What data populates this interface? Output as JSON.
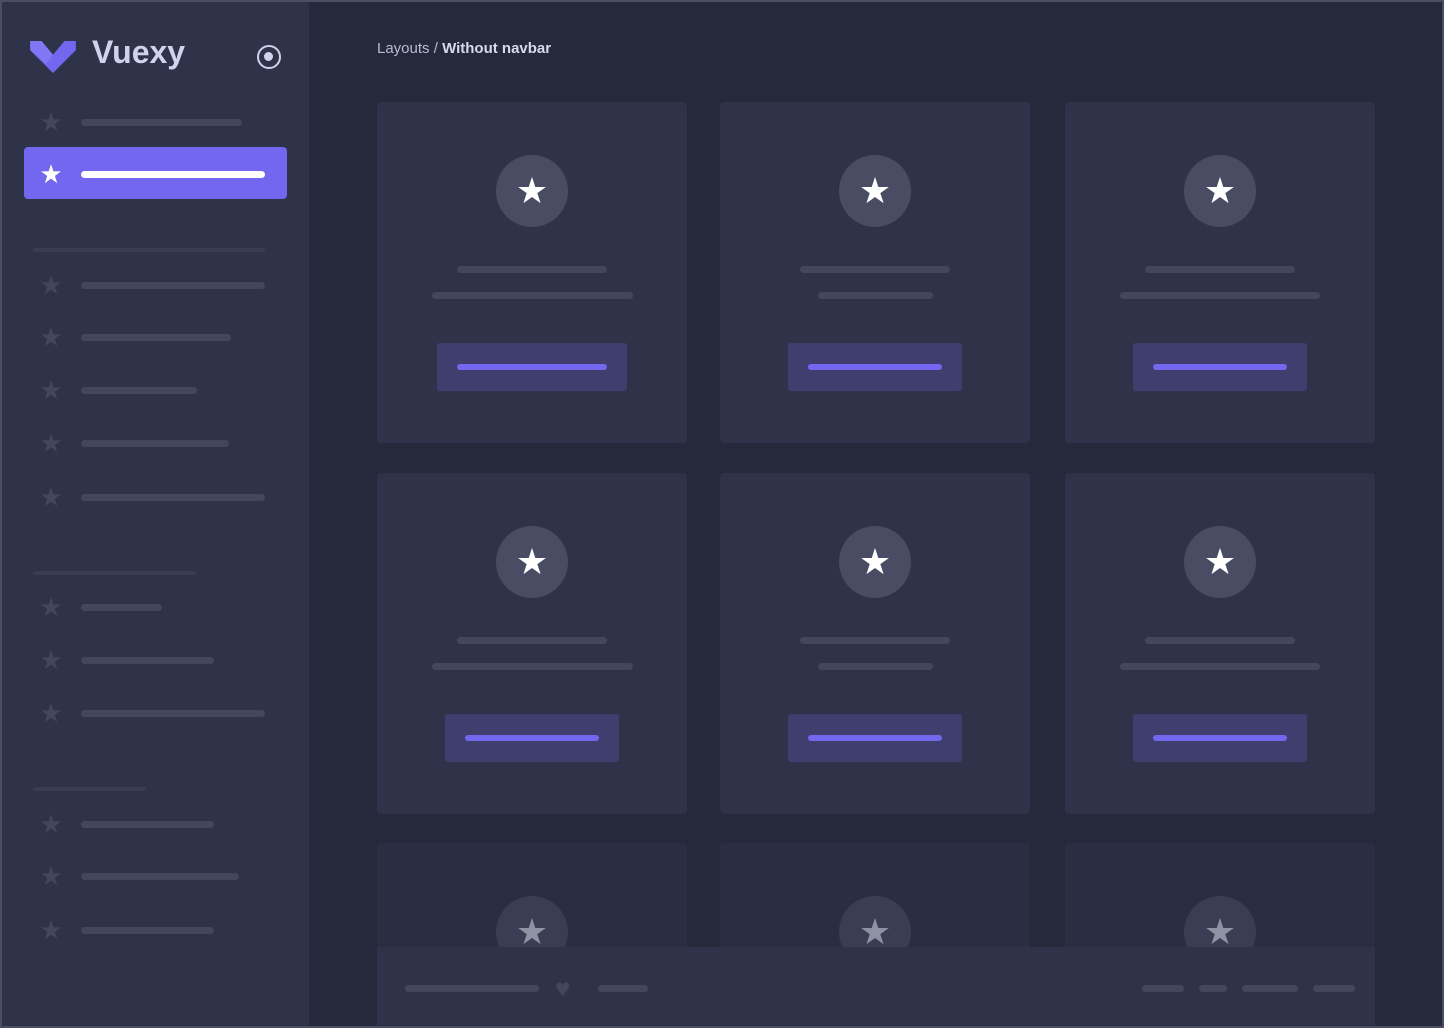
{
  "brand": {
    "name": "Vuexy",
    "logo_color": "#7367f0"
  },
  "breadcrumb": {
    "parent": "Layouts",
    "separator": " / ",
    "current": "Without navbar"
  },
  "colors": {
    "accent": "#7367f0",
    "sidebar": "#2f3349",
    "background": "#25293c",
    "card": "#2f3349"
  },
  "sidebar": {
    "toggle_icon": "radio-circle-icon",
    "active_index": 1,
    "item_icon": "star-icon"
  },
  "cards": {
    "icon": "star-icon",
    "rows": 3,
    "columns": 3
  },
  "footer": {
    "icon": "heart-icon"
  }
}
